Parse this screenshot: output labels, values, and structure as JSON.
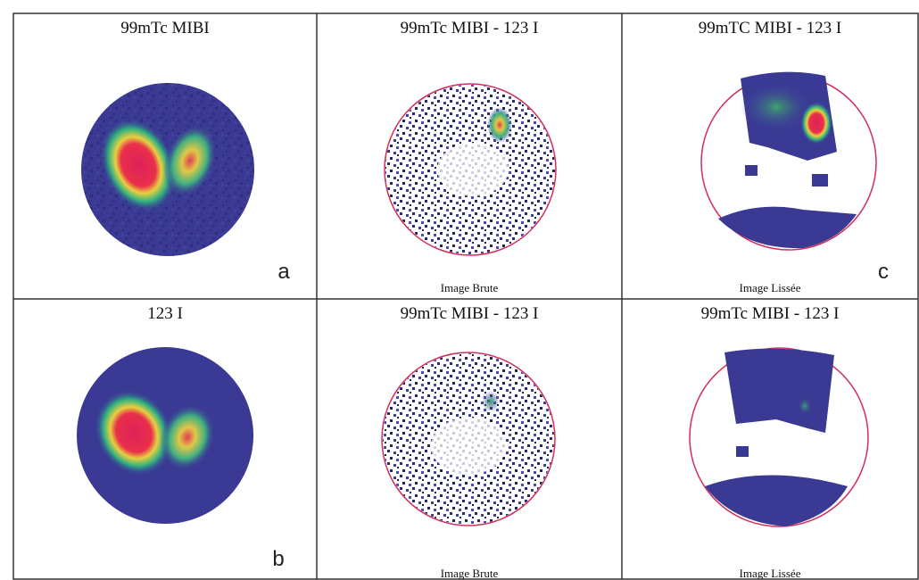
{
  "panels": [
    {
      "title": "99mTc MIBI",
      "letter": "a"
    },
    {
      "title": "99mTc MIBI - 123 I",
      "caption": "Image Brute"
    },
    {
      "title": "99mTC MIBI - 123 I",
      "caption": "Image Lissée",
      "letter": "c"
    },
    {
      "title": "123 I",
      "letter": "b"
    },
    {
      "title": "99mTc MIBI - 123 I",
      "caption": "Image Brute"
    },
    {
      "title": "99mTc MIBI - 123 I",
      "caption": "Image Lissée"
    }
  ]
}
